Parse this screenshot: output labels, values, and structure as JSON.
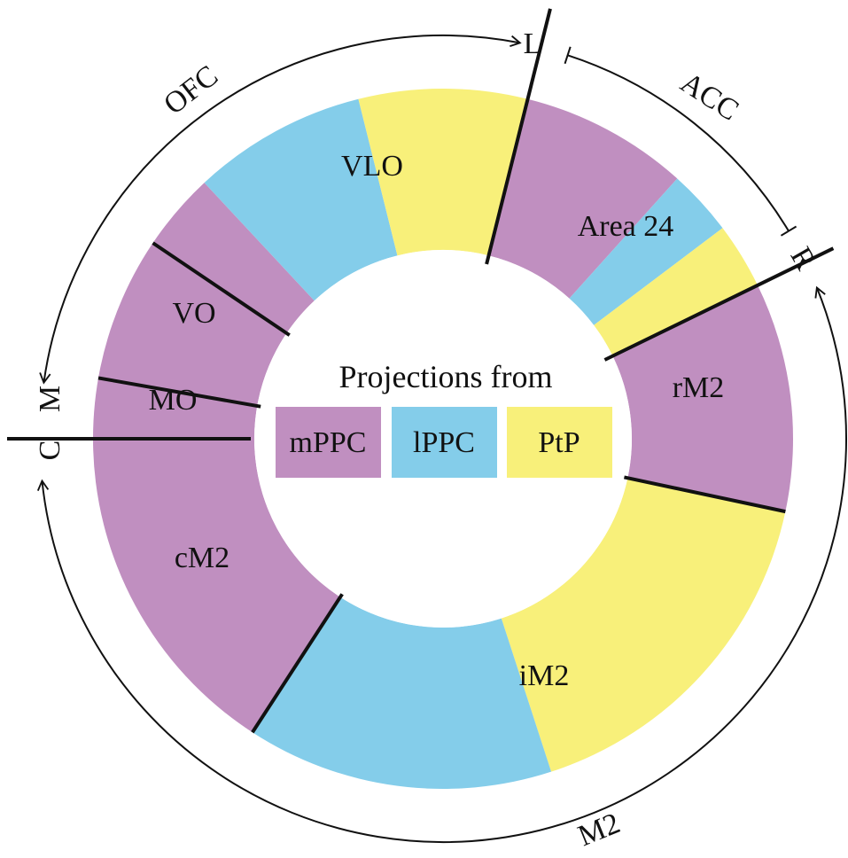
{
  "colors": {
    "purple": "#C08FC0",
    "blue": "#84CDEA",
    "yellow": "#F8F07A",
    "line": "#111111",
    "background": "#FFFFFF"
  },
  "center": {
    "title": "Projections from",
    "legend": [
      {
        "label": "mPPC",
        "color_key": "purple"
      },
      {
        "label": "lPPC",
        "color_key": "blue"
      },
      {
        "label": "PtP",
        "color_key": "yellow"
      }
    ]
  },
  "regions": [
    {
      "label": "VLO"
    },
    {
      "label": "Area 24"
    },
    {
      "label": "rM2"
    },
    {
      "label": "iM2"
    },
    {
      "label": "cM2"
    },
    {
      "label": "MO"
    },
    {
      "label": "VO"
    }
  ],
  "outer": {
    "OFC": "OFC",
    "ACC": "ACC",
    "M2": "M2",
    "L": "L",
    "R": "R",
    "M": "M",
    "C": "C"
  }
}
